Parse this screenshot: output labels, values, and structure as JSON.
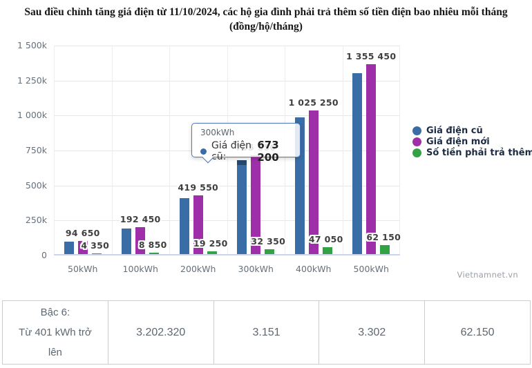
{
  "title": "Sau điều chỉnh tăng giá điện từ 11/10/2024, các hộ gia đình phải trả thêm số tiền điện bao nhiêu mỗi tháng (đồng/hộ/tháng)",
  "chart_data": {
    "type": "bar",
    "categories": [
      "50kWh",
      "100kWh",
      "200kWh",
      "300kWh",
      "400kWh",
      "500kWh"
    ],
    "series": [
      {
        "name": "Giá điện cũ",
        "color": "#3a6da6",
        "values": [
          90300,
          183600,
          400300,
          673200,
          978200,
          1293300
        ],
        "labels": null
      },
      {
        "name": "Giá điện mới",
        "color": "#9e2fa8",
        "values": [
          94650,
          192450,
          419550,
          705550,
          1025250,
          1355450
        ],
        "labels": [
          "94 650",
          "192 450",
          "419 550",
          "705 550",
          "1 025 250",
          "1 355 450"
        ]
      },
      {
        "name": "Số tiền phải trả thêm",
        "color": "#31a345",
        "values": [
          4350,
          8850,
          19250,
          32350,
          47050,
          62150
        ],
        "labels": [
          "4 350",
          "8 850",
          "19 250",
          "32 350",
          "47 050",
          "62 150"
        ]
      }
    ],
    "ylim": [
      0,
      1500000
    ],
    "ytick_values": [
      0,
      250000,
      500000,
      750000,
      1000000,
      1250000,
      1500000
    ],
    "ytick_labels": [
      "0",
      "250k",
      "500k",
      "750k",
      "1 000k",
      "1 250k",
      "1 500k"
    ],
    "grid": true,
    "legend_position": "right",
    "hover": {
      "category_index": 3,
      "series_index": 0
    }
  },
  "tooltip": {
    "category": "300kWh",
    "series_label": "Giá điện cũ:",
    "value": "673 200"
  },
  "watermark": "Vietnamnet.vn",
  "table": {
    "cells": [
      "Bậc 6:\nTừ 401 kWh trở lên",
      "3.202.320",
      "3.151",
      "3.302",
      "62.150"
    ]
  }
}
